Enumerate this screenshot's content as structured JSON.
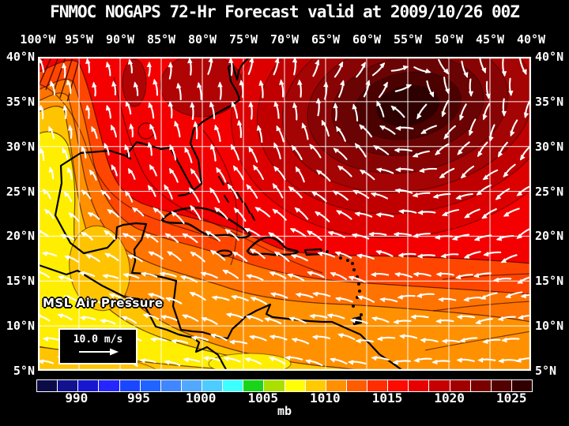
{
  "title": "FNMOC NOGAPS 72-Hr Forecast valid at 2009/10/26 00Z",
  "map": {
    "field_label": "MSL Air Pressure",
    "lon_labels": [
      "100°W",
      "95°W",
      "90°W",
      "85°W",
      "80°W",
      "75°W",
      "70°W",
      "65°W",
      "60°W",
      "55°W",
      "50°W",
      "45°W",
      "40°W"
    ],
    "lat_labels": [
      "40°N",
      "35°N",
      "30°N",
      "25°N",
      "20°N",
      "15°N",
      "10°N",
      "5°N"
    ]
  },
  "wind_legend": {
    "speed_label": "10.0 m/s"
  },
  "colorbar": {
    "unit": "mb",
    "ticks": [
      "990",
      "995",
      "1000",
      "1005",
      "1010",
      "1015",
      "1020",
      "1025"
    ],
    "colors": [
      "#0b0b48",
      "#12128f",
      "#1717cf",
      "#2525ff",
      "#1946ff",
      "#1f64ff",
      "#3f86ff",
      "#52a8ff",
      "#4ecbff",
      "#3cffff",
      "#1ad41a",
      "#aadf00",
      "#ffff05",
      "#ffca00",
      "#ff9000",
      "#ff5c00",
      "#ff2e00",
      "#ff0a00",
      "#e60000",
      "#c60000",
      "#a20000",
      "#7a0000",
      "#520000",
      "#300000"
    ]
  },
  "palette": {
    "background": "#000000",
    "text": "#ffffff",
    "grid_line": "#ffffff",
    "coastline": "#000000",
    "wind_arrow": "#ffffff",
    "contour_line": "#2a0000",
    "field_base_red": "#f40000",
    "field_orange_red": "#ff4600",
    "field_deep_orange": "#ff7300",
    "field_orange": "#ff9100",
    "field_gold": "#ffc400",
    "field_yellow": "#ffee00",
    "dark_red_blob": "#b00404",
    "high_rings": [
      "#dd0000",
      "#c00000",
      "#a40404",
      "#880404",
      "#6a0303",
      "#4c0101",
      "#2e0000"
    ]
  }
}
